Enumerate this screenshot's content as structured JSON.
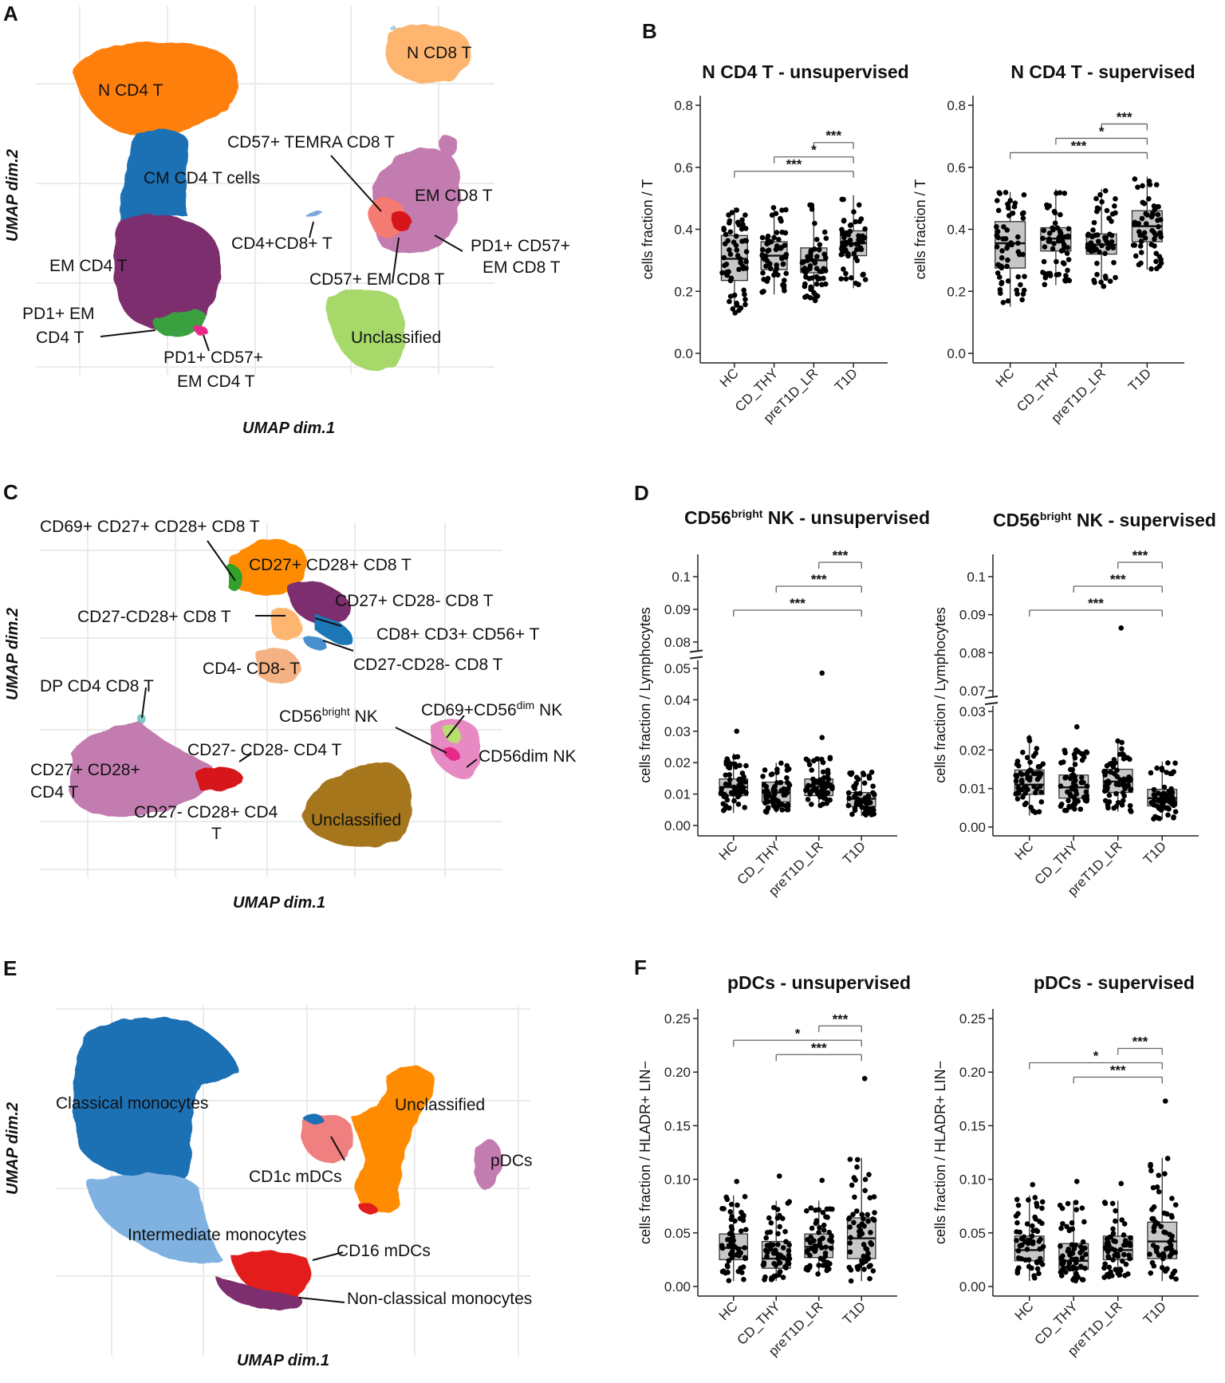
{
  "panels": {
    "A": {
      "letter": "A",
      "xlabel": "UMAP dim.1",
      "ylabel": "UMAP dim.2",
      "labels": [
        "N CD8 T",
        "N CD4 T",
        "CD57+ TEMRA CD8 T",
        "CM CD4 T cells",
        "EM CD8 T",
        "CD4+CD8+ T",
        "PD1+ CD57+",
        "EM CD8 T",
        "EM CD4 T",
        "CD57+ EM CD8 T",
        "PD1+ EM",
        "CD4 T",
        "Unclassified",
        "PD1+ CD57+",
        "EM CD4 T"
      ]
    },
    "C": {
      "letter": "C",
      "xlabel": "UMAP dim.1",
      "ylabel": "UMAP dim.2",
      "labels": [
        "CD69+ CD27+ CD28+ CD8 T",
        "CD27+ CD28+ CD8 T",
        "CD27+ CD28- CD8 T",
        "CD27-CD28+ CD8 T",
        "CD8+ CD3+ CD56+ T",
        "CD27-CD28- CD8 T",
        "CD4- CD8- T",
        "DP CD4 CD8 T",
        "CD56",
        "bright",
        " NK",
        "CD69+CD56",
        "dim",
        " NK",
        "CD27- CD28- CD4 T",
        "CD56dim NK",
        "CD27+ CD28+",
        "CD4 T",
        "CD27- CD28+ CD4",
        "T",
        "Unclassified"
      ]
    },
    "E": {
      "letter": "E",
      "xlabel": "UMAP dim.1",
      "ylabel": "UMAP dim.2",
      "labels": [
        "Classical monocytes",
        "Unclassified",
        "pDCs",
        "CD1c mDCs",
        "Intermediate monocytes",
        "CD16 mDCs",
        "Non-classical monocytes"
      ]
    },
    "B": {
      "letter": "B"
    },
    "D": {
      "letter": "D"
    },
    "F": {
      "letter": "F"
    }
  },
  "chart_data": [
    {
      "type": "box",
      "panel": "B",
      "title": "N CD4 T - unsupervised",
      "ylabel": "cells fraction / T",
      "ylim": [
        0,
        0.8
      ],
      "yticks": [
        "0.0",
        "0.2",
        "0.4",
        "0.6",
        "0.8"
      ],
      "ytick_values": [
        0,
        0.2,
        0.4,
        0.6,
        0.8
      ],
      "categories": [
        "HC",
        "CD_THY",
        "preT1D_LR",
        "T1D"
      ],
      "boxes": [
        {
          "q1": 0.235,
          "median": 0.305,
          "q3": 0.38,
          "whisker_low": 0.13,
          "whisker_high": 0.47
        },
        {
          "q1": 0.27,
          "median": 0.315,
          "q3": 0.36,
          "whisker_low": 0.19,
          "whisker_high": 0.47
        },
        {
          "q1": 0.26,
          "median": 0.3,
          "q3": 0.34,
          "whisker_low": 0.17,
          "whisker_high": 0.48
        },
        {
          "q1": 0.315,
          "median": 0.355,
          "q3": 0.395,
          "whisker_low": 0.21,
          "whisker_high": 0.51
        }
      ],
      "significance": [
        {
          "from": 3,
          "to": 4,
          "label": "***"
        },
        {
          "from": 2,
          "to": 4,
          "label": "*"
        },
        {
          "from": 1,
          "to": 4,
          "label": "***"
        }
      ]
    },
    {
      "type": "box",
      "panel": "B",
      "title": "N CD4 T - supervised",
      "ylabel": "cells fraction / T",
      "ylim": [
        0,
        0.8
      ],
      "yticks": [
        "0.0",
        "0.2",
        "0.4",
        "0.6",
        "0.8"
      ],
      "ytick_values": [
        0,
        0.2,
        0.4,
        0.6,
        0.8
      ],
      "categories": [
        "HC",
        "CD_THY",
        "preT1D_LR",
        "T1D"
      ],
      "boxes": [
        {
          "q1": 0.275,
          "median": 0.355,
          "q3": 0.425,
          "whisker_low": 0.15,
          "whisker_high": 0.52
        },
        {
          "q1": 0.33,
          "median": 0.37,
          "q3": 0.405,
          "whisker_low": 0.22,
          "whisker_high": 0.53
        },
        {
          "q1": 0.32,
          "median": 0.35,
          "q3": 0.385,
          "whisker_low": 0.21,
          "whisker_high": 0.53
        },
        {
          "q1": 0.36,
          "median": 0.41,
          "q3": 0.46,
          "whisker_low": 0.27,
          "whisker_high": 0.57
        }
      ],
      "significance": [
        {
          "from": 3,
          "to": 4,
          "label": "***"
        },
        {
          "from": 2,
          "to": 4,
          "label": "*"
        },
        {
          "from": 1,
          "to": 4,
          "label": "***"
        }
      ]
    },
    {
      "type": "box",
      "panel": "D",
      "title": "CD56",
      "title_sup": "bright",
      "title_rest": " NK - unsupervised",
      "ylabel": "cells fraction / Lymphocytes",
      "ylim": [
        0,
        0.1
      ],
      "axis_break": true,
      "yticks": [
        "0.00",
        "0.01",
        "0.02",
        "0.03",
        "0.04",
        "0.05",
        "0.08",
        "0.09",
        "0.1"
      ],
      "ytick_values": [
        0,
        0.01,
        0.02,
        0.03,
        0.04,
        0.05,
        0.08,
        0.09,
        0.1
      ],
      "categories": [
        "HC",
        "CD_THY",
        "preT1D_LR",
        "T1D"
      ],
      "boxes": [
        {
          "q1": 0.0095,
          "median": 0.0122,
          "q3": 0.0148,
          "whisker_low": 0.004,
          "whisker_high": 0.023
        },
        {
          "q1": 0.0075,
          "median": 0.0105,
          "q3": 0.0138,
          "whisker_low": 0.004,
          "whisker_high": 0.02
        },
        {
          "q1": 0.0095,
          "median": 0.0123,
          "q3": 0.0148,
          "whisker_low": 0.006,
          "whisker_high": 0.022
        },
        {
          "q1": 0.006,
          "median": 0.0085,
          "q3": 0.0105,
          "whisker_low": 0.003,
          "whisker_high": 0.017
        }
      ],
      "outliers": [
        {
          "group": 3,
          "value": 0.0485
        },
        {
          "group": 3,
          "value": 0.028
        },
        {
          "group": 1,
          "value": 0.03
        }
      ],
      "significance": [
        {
          "from": 3,
          "to": 4,
          "label": "***"
        },
        {
          "from": 2,
          "to": 4,
          "label": "***"
        },
        {
          "from": 1,
          "to": 4,
          "label": "***"
        }
      ]
    },
    {
      "type": "box",
      "panel": "D",
      "title": "CD56",
      "title_sup": "bright",
      "title_rest": " NK - supervised",
      "ylabel": "cells fraction / Lymphocytes",
      "ylim": [
        0,
        0.1
      ],
      "axis_break": true,
      "yticks": [
        "0.00",
        "0.01",
        "0.02",
        "0.03",
        "0.07",
        "0.08",
        "0.09",
        "0.1"
      ],
      "ytick_values": [
        0,
        0.01,
        0.02,
        0.03,
        0.07,
        0.08,
        0.09,
        0.1
      ],
      "categories": [
        "HC",
        "CD_THY",
        "preT1D_LR",
        "T1D"
      ],
      "boxes": [
        {
          "q1": 0.0085,
          "median": 0.011,
          "q3": 0.0148,
          "whisker_low": 0.003,
          "whisker_high": 0.024
        },
        {
          "q1": 0.0075,
          "median": 0.0103,
          "q3": 0.0135,
          "whisker_low": 0.004,
          "whisker_high": 0.02
        },
        {
          "q1": 0.009,
          "median": 0.0118,
          "q3": 0.015,
          "whisker_low": 0.004,
          "whisker_high": 0.023
        },
        {
          "q1": 0.0055,
          "median": 0.0075,
          "q3": 0.0098,
          "whisker_low": 0.002,
          "whisker_high": 0.017
        }
      ],
      "outliers": [
        {
          "group": 3,
          "value": 0.0865
        },
        {
          "group": 2,
          "value": 0.026
        }
      ],
      "significance": [
        {
          "from": 3,
          "to": 4,
          "label": "***"
        },
        {
          "from": 2,
          "to": 4,
          "label": "***"
        },
        {
          "from": 1,
          "to": 4,
          "label": "***"
        }
      ]
    },
    {
      "type": "box",
      "panel": "F",
      "title": "pDCs - unsupervised",
      "ylabel": "cells fraction / HLADR+ LIN−",
      "ylim": [
        0,
        0.25
      ],
      "yticks": [
        "0.00",
        "0.05",
        "0.10",
        "0.15",
        "0.20",
        "0.25"
      ],
      "ytick_values": [
        0,
        0.05,
        0.1,
        0.15,
        0.2,
        0.25
      ],
      "categories": [
        "HC",
        "CD_THY",
        "preT1D_LR",
        "T1D"
      ],
      "boxes": [
        {
          "q1": 0.025,
          "median": 0.036,
          "q3": 0.049,
          "whisker_low": 0.005,
          "whisker_high": 0.085
        },
        {
          "q1": 0.017,
          "median": 0.026,
          "q3": 0.042,
          "whisker_low": 0.005,
          "whisker_high": 0.08
        },
        {
          "q1": 0.027,
          "median": 0.037,
          "q3": 0.049,
          "whisker_low": 0.01,
          "whisker_high": 0.08
        },
        {
          "q1": 0.026,
          "median": 0.045,
          "q3": 0.064,
          "whisker_low": 0.005,
          "whisker_high": 0.12
        }
      ],
      "outliers": [
        {
          "group": 4,
          "value": 0.194
        },
        {
          "group": 1,
          "value": 0.098
        },
        {
          "group": 2,
          "value": 0.103
        },
        {
          "group": 3,
          "value": 0.099
        }
      ],
      "significance": [
        {
          "from": 3,
          "to": 4,
          "label": "***"
        },
        {
          "from": 1,
          "to": 4,
          "label": "*"
        },
        {
          "from": 2,
          "to": 4,
          "label": "***"
        }
      ]
    },
    {
      "type": "box",
      "panel": "F",
      "title": "pDCs - supervised",
      "ylabel": "cells fraction / HLADR+ LIN−",
      "ylim": [
        0,
        0.25
      ],
      "yticks": [
        "0.00",
        "0.05",
        "0.10",
        "0.15",
        "0.20",
        "0.25"
      ],
      "ytick_values": [
        0,
        0.05,
        0.1,
        0.15,
        0.2,
        0.25
      ],
      "categories": [
        "HC",
        "CD_THY",
        "preT1D_LR",
        "T1D"
      ],
      "boxes": [
        {
          "q1": 0.024,
          "median": 0.034,
          "q3": 0.047,
          "whisker_low": 0.005,
          "whisker_high": 0.085
        },
        {
          "q1": 0.016,
          "median": 0.024,
          "q3": 0.04,
          "whisker_low": 0.005,
          "whisker_high": 0.08
        },
        {
          "q1": 0.025,
          "median": 0.034,
          "q3": 0.047,
          "whisker_low": 0.008,
          "whisker_high": 0.08
        },
        {
          "q1": 0.026,
          "median": 0.042,
          "q3": 0.06,
          "whisker_low": 0.005,
          "whisker_high": 0.12
        }
      ],
      "outliers": [
        {
          "group": 4,
          "value": 0.173
        },
        {
          "group": 1,
          "value": 0.095
        },
        {
          "group": 2,
          "value": 0.098
        },
        {
          "group": 3,
          "value": 0.096
        }
      ],
      "significance": [
        {
          "from": 3,
          "to": 4,
          "label": "***"
        },
        {
          "from": 1,
          "to": 4,
          "label": "*"
        },
        {
          "from": 2,
          "to": 4,
          "label": "***"
        }
      ]
    }
  ]
}
